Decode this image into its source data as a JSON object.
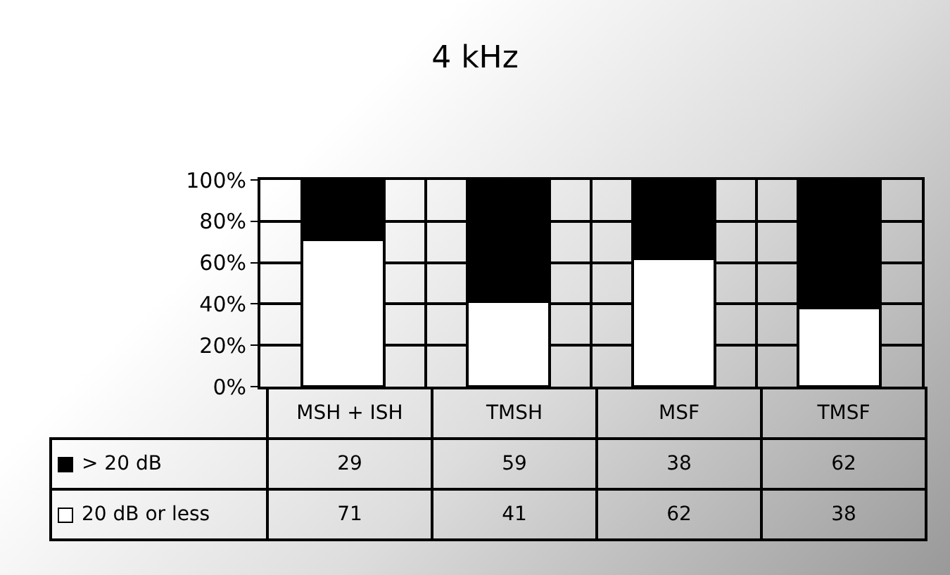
{
  "chart_data": {
    "type": "bar",
    "title": "4 kHz",
    "stacked": true,
    "categories": [
      "MSH + ISH",
      "TMSH",
      "MSF",
      "TMSF"
    ],
    "series": [
      {
        "name": "20 dB or less",
        "color": "#ffffff",
        "values": [
          71,
          41,
          62,
          38
        ]
      },
      {
        "name": "> 20 dB",
        "color": "#000000",
        "values": [
          29,
          59,
          38,
          62
        ]
      }
    ],
    "ylim": [
      0,
      100
    ],
    "yticks": [
      {
        "value": 0,
        "label": "0%"
      },
      {
        "value": 20,
        "label": "20%"
      },
      {
        "value": 40,
        "label": "40%"
      },
      {
        "value": 60,
        "label": "60%"
      },
      {
        "value": 80,
        "label": "80%"
      },
      {
        "value": 100,
        "label": "100%"
      }
    ],
    "grid": "y",
    "legend": "bottom",
    "data_labels": true
  }
}
